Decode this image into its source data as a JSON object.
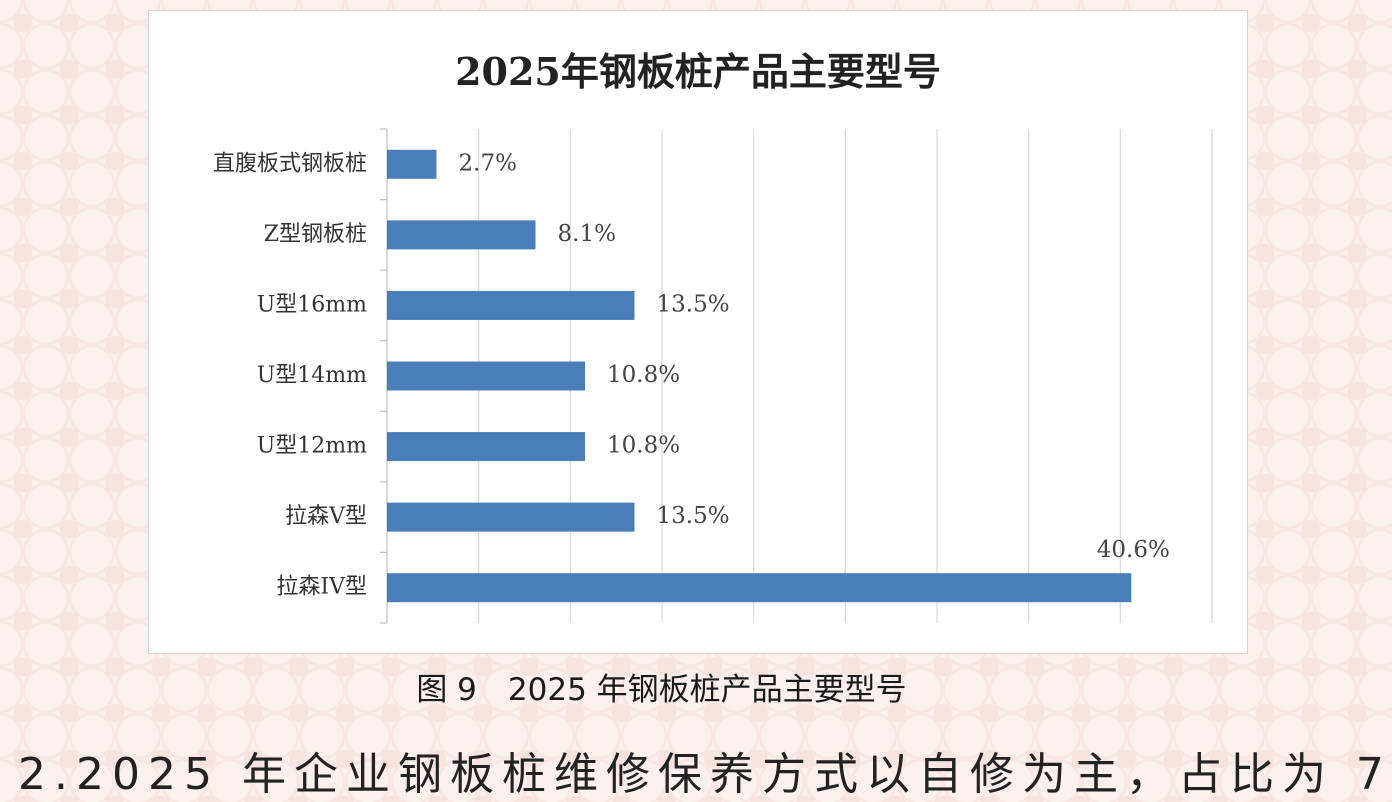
{
  "caption": "图 9　2025 年钢板桩产品主要型号",
  "body_text": "2.2025 年企业钢板桩维修保养方式以自修为主，占比为 7",
  "chart_data": {
    "type": "bar",
    "orientation": "horizontal",
    "title": "2025年钢板桩产品主要型号",
    "categories": [
      "直腹板式钢板桩",
      "Z型钢板桩",
      "U型16mm",
      "U型14mm",
      "U型12mm",
      "拉森V型",
      "拉森IV型"
    ],
    "values": [
      2.7,
      8.1,
      13.5,
      10.8,
      10.8,
      13.5,
      40.6
    ],
    "labels": [
      "2.7%",
      "8.1%",
      "13.5%",
      "10.8%",
      "10.8%",
      "13.5%",
      "40.6%"
    ],
    "value_unit": "%",
    "xlim": [
      0,
      45
    ],
    "grid": true,
    "bar_color": "#4a7ebb"
  }
}
